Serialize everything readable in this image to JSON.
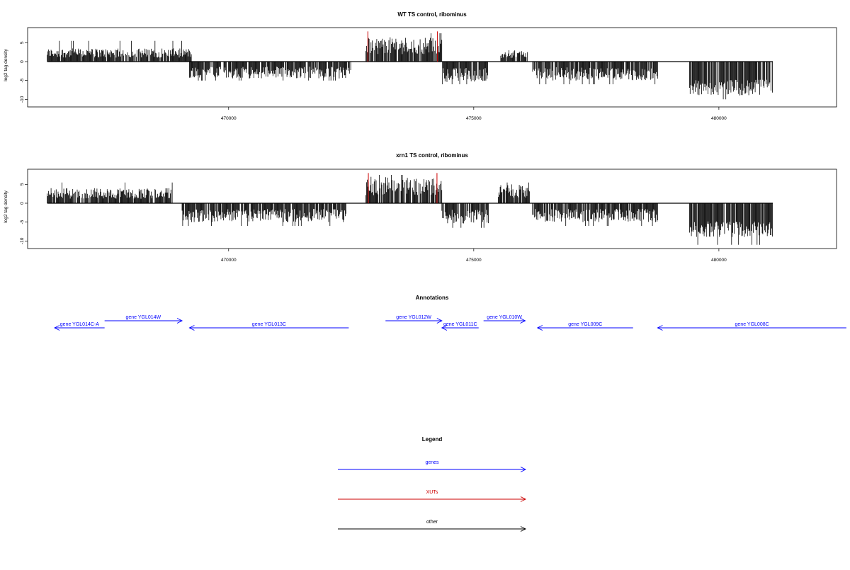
{
  "chart_data": [
    {
      "type": "bar",
      "title": "WT TS control, ribominus",
      "ylabel": "log2 tag density",
      "xlabel": "",
      "xlim": [
        465900,
        482400
      ],
      "ylim": [
        -12,
        9
      ],
      "xticks": [
        470000,
        475000,
        480000
      ],
      "xtick_labels": [
        "470000",
        "475000",
        "480000"
      ],
      "yticks": [
        5,
        0,
        -5,
        -10
      ],
      "ytick_labels": [
        "5",
        "0",
        "-5",
        "-10"
      ],
      "grid": false,
      "segments": [
        {
          "start": 466300,
          "end": 469250,
          "min": 0,
          "max": 3.5,
          "peak": 5.5,
          "color": "#000000"
        },
        {
          "start": 469200,
          "end": 472500,
          "min": -4.5,
          "max": 0,
          "peak": -5,
          "color": "#000000"
        },
        {
          "start": 472800,
          "end": 474350,
          "min": 0,
          "max": 6.5,
          "peak": 7.5,
          "color": "#000000"
        },
        {
          "start": 474350,
          "end": 475300,
          "min": -5.5,
          "max": 0,
          "peak": -6,
          "color": "#000000"
        },
        {
          "start": 475550,
          "end": 476100,
          "min": 0,
          "max": 3.0,
          "peak": 3.5,
          "color": "#000000"
        },
        {
          "start": 476200,
          "end": 478750,
          "min": -5,
          "max": 0,
          "peak": -6,
          "color": "#000000"
        },
        {
          "start": 479400,
          "end": 481100,
          "min": -9,
          "max": -3,
          "peak": -10,
          "color": "#000000"
        }
      ],
      "markers": [
        {
          "x": 472840,
          "value": 8,
          "color": "#cc0000"
        },
        {
          "x": 474260,
          "value": 8,
          "color": "#cc0000"
        }
      ]
    },
    {
      "type": "bar",
      "title": "xrn1 TS control, ribominus",
      "ylabel": "log2 tag density",
      "xlabel": "",
      "xlim": [
        465900,
        482400
      ],
      "ylim": [
        -12,
        9
      ],
      "xticks": [
        470000,
        475000,
        480000
      ],
      "xtick_labels": [
        "470000",
        "475000",
        "480000"
      ],
      "yticks": [
        5,
        0,
        -5,
        -10
      ],
      "ytick_labels": [
        "5",
        "0",
        "-5",
        "-10"
      ],
      "grid": false,
      "segments": [
        {
          "start": 466300,
          "end": 468850,
          "min": 0,
          "max": 4,
          "peak": 5.5,
          "color": "#000000"
        },
        {
          "start": 469050,
          "end": 472400,
          "min": -5,
          "max": 0,
          "peak": -6,
          "color": "#000000"
        },
        {
          "start": 472800,
          "end": 474350,
          "min": 0,
          "max": 7,
          "peak": 7.5,
          "color": "#000000"
        },
        {
          "start": 474350,
          "end": 475300,
          "min": -5.5,
          "max": 0,
          "peak": -6.5,
          "color": "#000000"
        },
        {
          "start": 475500,
          "end": 476150,
          "min": 0,
          "max": 5,
          "peak": 5.5,
          "color": "#000000"
        },
        {
          "start": 476200,
          "end": 478750,
          "min": -5,
          "max": 0,
          "peak": -6,
          "color": "#000000"
        },
        {
          "start": 479400,
          "end": 481100,
          "min": -9,
          "max": -3,
          "peak": -11,
          "color": "#000000"
        }
      ],
      "markers": [
        {
          "x": 472850,
          "value": 8,
          "color": "#cc0000"
        },
        {
          "x": 474250,
          "value": 8,
          "color": "#cc0000"
        }
      ]
    }
  ],
  "annotations": {
    "title": "Annotations",
    "genes": [
      {
        "label": "gene YGL014W",
        "start": 467470,
        "end": 469050,
        "strand": "+",
        "row": 0
      },
      {
        "label": "gene YGL014C-A",
        "start": 466450,
        "end": 467470,
        "strand": "-",
        "row": 1
      },
      {
        "label": "gene YGL013C",
        "start": 469200,
        "end": 472450,
        "strand": "-",
        "row": 1
      },
      {
        "label": "gene YGL012W",
        "start": 473200,
        "end": 474350,
        "strand": "+",
        "row": 0
      },
      {
        "label": "gene YGL011C",
        "start": 474350,
        "end": 475100,
        "strand": "-",
        "row": 1
      },
      {
        "label": "gene YGL010W",
        "start": 475200,
        "end": 476050,
        "strand": "+",
        "row": 0
      },
      {
        "label": "gene YGL009C",
        "start": 476300,
        "end": 478250,
        "strand": "-",
        "row": 1
      },
      {
        "label": "gene YGL008C",
        "start": 478750,
        "end": 482600,
        "strand": "-",
        "row": 1
      }
    ]
  },
  "legend": {
    "title": "Legend",
    "items": [
      {
        "label": "genes",
        "color": "#0000ff"
      },
      {
        "label": "XUTs",
        "color": "#cc0000"
      },
      {
        "label": "other",
        "color": "#000000"
      }
    ]
  }
}
